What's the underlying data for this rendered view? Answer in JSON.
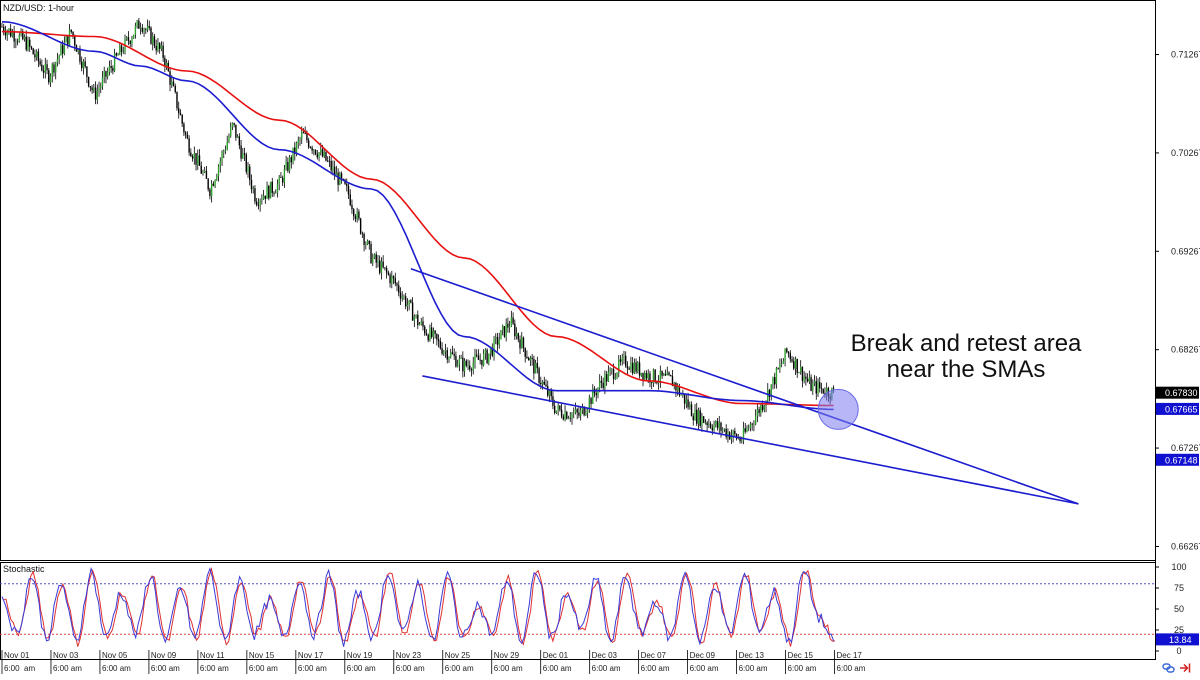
{
  "chart_data": {
    "type": "candlestick",
    "title": "NZD/USD: 1-hour",
    "price_axis": {
      "ylim": [
        0.6617,
        0.7174
      ],
      "tick_labels": [
        "0.71267",
        "0.70267",
        "0.69267",
        "0.68267",
        "0.67267",
        "0.66267"
      ],
      "tick_values": [
        0.71267,
        0.70267,
        0.69267,
        0.68267,
        0.67267,
        0.66267
      ]
    },
    "price_badges": [
      {
        "label": "0.67830",
        "value": 0.6783,
        "color": "#000000"
      },
      {
        "label": "0.67665",
        "value": 0.67665,
        "color": "#1010d0"
      },
      {
        "label": "0.67148",
        "value": 0.67148,
        "color": "#1010d0"
      }
    ],
    "x_axis": {
      "sessions": 34,
      "date_labels": [
        {
          "session": 0,
          "label": "Nov 01"
        },
        {
          "session": 2,
          "label": "Nov 03"
        },
        {
          "session": 4,
          "label": "Nov 05"
        },
        {
          "session": 6,
          "label": "Nov 09"
        },
        {
          "session": 8,
          "label": "Nov 11"
        },
        {
          "session": 10,
          "label": "Nov 15"
        },
        {
          "session": 12,
          "label": "Nov 17"
        },
        {
          "session": 14,
          "label": "Nov 19"
        },
        {
          "session": 16,
          "label": "Nov 23"
        },
        {
          "session": 18,
          "label": "Nov 25"
        },
        {
          "session": 20,
          "label": "Nov 29"
        },
        {
          "session": 22,
          "label": "Dec 01"
        },
        {
          "session": 24,
          "label": "Dec 03"
        },
        {
          "session": 26,
          "label": "Dec 07"
        },
        {
          "session": 28,
          "label": "Dec 09"
        },
        {
          "session": 30,
          "label": "Dec 13"
        },
        {
          "session": 32,
          "label": "Dec 15"
        },
        {
          "session": 34,
          "label": "Dec 17"
        }
      ],
      "time_label": "6:00 am",
      "first_labels": [
        "6:00",
        "am"
      ]
    },
    "price_path": [
      [
        0,
        0.7155
      ],
      [
        1,
        0.714
      ],
      [
        2,
        0.7105
      ],
      [
        3,
        0.715
      ],
      [
        4,
        0.7085
      ],
      [
        5,
        0.7125
      ],
      [
        6,
        0.716
      ],
      [
        7,
        0.7125
      ],
      [
        8,
        0.704
      ],
      [
        9,
        0.699
      ],
      [
        10,
        0.7055
      ],
      [
        11,
        0.698
      ],
      [
        12,
        0.6995
      ],
      [
        13,
        0.7045
      ],
      [
        14,
        0.702
      ],
      [
        15,
        0.6985
      ],
      [
        16,
        0.692
      ],
      [
        17,
        0.6895
      ],
      [
        18,
        0.6855
      ],
      [
        19,
        0.683
      ],
      [
        20,
        0.681
      ],
      [
        21,
        0.682
      ],
      [
        22,
        0.6855
      ],
      [
        23,
        0.681
      ],
      [
        24,
        0.6765
      ],
      [
        25,
        0.676
      ],
      [
        26,
        0.6795
      ],
      [
        27,
        0.6815
      ],
      [
        28,
        0.68
      ],
      [
        29,
        0.6795
      ],
      [
        30,
        0.676
      ],
      [
        31,
        0.6748
      ],
      [
        32,
        0.6735
      ],
      [
        33,
        0.6775
      ],
      [
        34,
        0.6825
      ],
      [
        35,
        0.679
      ],
      [
        36,
        0.6783
      ]
    ],
    "series": [
      {
        "name": "",
        "color": "#e81010",
        "values": [
          [
            0,
            0.715
          ],
          [
            4,
            0.7145
          ],
          [
            8,
            0.711
          ],
          [
            12,
            0.706
          ],
          [
            16,
            0.7
          ],
          [
            20,
            0.692
          ],
          [
            24,
            0.684
          ],
          [
            28,
            0.6795
          ],
          [
            32,
            0.6772
          ],
          [
            36,
            0.677
          ]
        ]
      },
      {
        "name": "",
        "color": "#1c1cd0",
        "values": [
          [
            0,
            0.716
          ],
          [
            4,
            0.713
          ],
          [
            6,
            0.7115
          ],
          [
            8,
            0.71
          ],
          [
            12,
            0.703
          ],
          [
            16,
            0.699
          ],
          [
            20,
            0.684
          ],
          [
            24,
            0.6785
          ],
          [
            28,
            0.6785
          ],
          [
            32,
            0.6775
          ],
          [
            36,
            0.6766
          ]
        ]
      }
    ],
    "trendlines": [
      {
        "color": "#1c1cd0",
        "from": [
          17.7,
          0.6909
        ],
        "to": [
          46.6,
          0.667
        ]
      },
      {
        "color": "#1c1cd0",
        "from": [
          18.2,
          0.68
        ],
        "to": [
          46.6,
          0.667
        ]
      }
    ],
    "highlight_circle": {
      "session": 36.2,
      "value": 0.6766
    },
    "annotation": [
      "Break and retest area",
      "near the SMAs"
    ],
    "oscillator": {
      "title": "Stochastic",
      "ylim": [
        0,
        100
      ],
      "tick_labels": [
        "100",
        "75",
        "50",
        "25",
        "0"
      ],
      "tick_values": [
        100,
        75,
        50,
        25,
        0
      ],
      "levels": [
        {
          "value": 80,
          "color": "#5050c8"
        },
        {
          "value": 20,
          "color": "#e04040"
        }
      ],
      "current_badge": {
        "label": "13.84",
        "value": 13.84
      },
      "swings": [
        62,
        20,
        90,
        15,
        80,
        10,
        95,
        15,
        70,
        20,
        90,
        10,
        75,
        15,
        95,
        10,
        85,
        20,
        60,
        15,
        85,
        20,
        90,
        10,
        70,
        15,
        95,
        20,
        80,
        10,
        90,
        15,
        55,
        20,
        85,
        10,
        95,
        15,
        70,
        25,
        85,
        10,
        90,
        20,
        60,
        15,
        95,
        10,
        80,
        20,
        90,
        25,
        70,
        10,
        95,
        40,
        12
      ]
    }
  }
}
